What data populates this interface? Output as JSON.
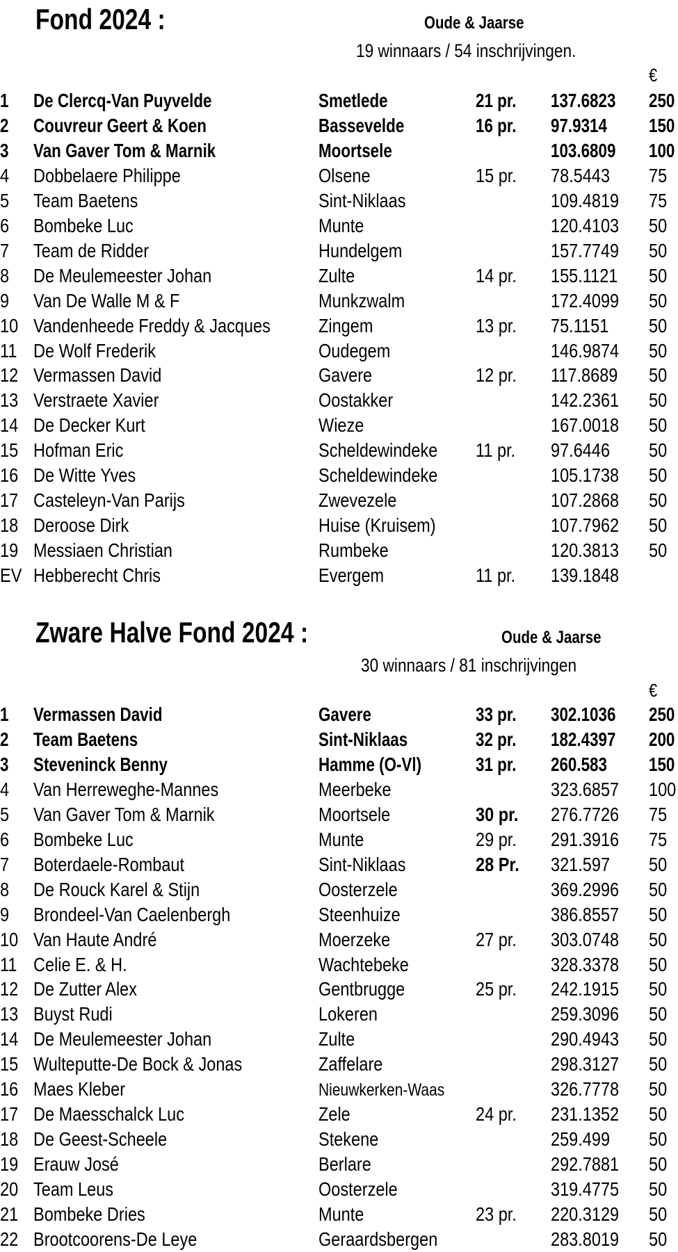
{
  "sections": [
    {
      "title": "Fond 2024 :",
      "category": "Oude & Jaarse",
      "summary": "19 winnaars / 54  inschrijvingen.",
      "currency": "€",
      "rows": [
        {
          "rank": "1",
          "name": "De Clercq-Van Puyvelde",
          "city": "Smetlede",
          "pr": "21 pr.",
          "speed": "137.6823",
          "prize": "250",
          "bold": true
        },
        {
          "rank": "2",
          "name": "Couvreur Geert & Koen",
          "city": "Bassevelde",
          "pr": "16 pr.",
          "speed": "97.9314",
          "prize": "150",
          "bold": true
        },
        {
          "rank": "3",
          "name": "Van Gaver Tom & Marnik",
          "city": "Moortsele",
          "pr": "",
          "speed": "103.6809",
          "prize": "100",
          "bold": true
        },
        {
          "rank": "4",
          "name": "Dobbelaere Philippe",
          "city": "Olsene",
          "pr": "15 pr.",
          "speed": "78.5443",
          "prize": "75"
        },
        {
          "rank": "5",
          "name": "Team Baetens",
          "city": "Sint-Niklaas",
          "pr": "",
          "speed": "109.4819",
          "prize": "75"
        },
        {
          "rank": "6",
          "name": "Bombeke Luc",
          "city": "Munte",
          "pr": "",
          "speed": "120.4103",
          "prize": "50"
        },
        {
          "rank": "7",
          "name": "Team de Ridder",
          "city": "Hundelgem",
          "pr": "",
          "speed": "157.7749",
          "prize": "50"
        },
        {
          "rank": "8",
          "name": "De Meulemeester Johan",
          "city": "Zulte",
          "pr": "14 pr.",
          "speed": "155.1121",
          "prize": "50"
        },
        {
          "rank": "9",
          "name": "Van De Walle M & F",
          "city": "Munkzwalm",
          "pr": "",
          "speed": "172.4099",
          "prize": "50"
        },
        {
          "rank": "10",
          "name": "Vandenheede Freddy & Jacques",
          "city": "Zingem",
          "pr": "13 pr.",
          "speed": "75.1151",
          "prize": "50"
        },
        {
          "rank": "11",
          "name": "De Wolf Frederik",
          "city": "Oudegem",
          "pr": "",
          "speed": "146.9874",
          "prize": "50"
        },
        {
          "rank": "12",
          "name": "Vermassen David",
          "city": "Gavere",
          "pr": "12 pr.",
          "speed": "117.8689",
          "prize": "50"
        },
        {
          "rank": "13",
          "name": "Verstraete Xavier",
          "city": "Oostakker",
          "pr": "",
          "speed": "142.2361",
          "prize": "50"
        },
        {
          "rank": "14",
          "name": "De Decker Kurt",
          "city": "Wieze",
          "pr": "",
          "speed": "167.0018",
          "prize": "50"
        },
        {
          "rank": "15",
          "name": "Hofman Eric",
          "city": "Scheldewindeke",
          "pr": "11 pr.",
          "speed": "97.6446",
          "prize": "50"
        },
        {
          "rank": "16",
          "name": "De Witte Yves",
          "city": "Scheldewindeke",
          "pr": "",
          "speed": "105.1738",
          "prize": "50"
        },
        {
          "rank": "17",
          "name": "Casteleyn-Van Parijs",
          "city": "Zwevezele",
          "pr": "",
          "speed": "107.2868",
          "prize": "50"
        },
        {
          "rank": "18",
          "name": "Deroose Dirk",
          "city": "Huise (Kruisem)",
          "pr": "",
          "speed": "107.7962",
          "prize": "50"
        },
        {
          "rank": "19",
          "name": "Messiaen Christian",
          "city": "Rumbeke",
          "pr": "",
          "speed": "120.3813",
          "prize": "50"
        },
        {
          "rank": "EV",
          "name": "Hebberecht Chris",
          "city": "Evergem",
          "pr": "11 pr.",
          "speed": "139.1848",
          "prize": ""
        }
      ]
    },
    {
      "title": "Zware Halve Fond 2024 :",
      "category": "Oude & Jaarse",
      "summary": "30 winnaars / 81 inschrijvingen",
      "currency": "€",
      "rows": [
        {
          "rank": "1",
          "name": "Vermassen David",
          "city": "Gavere",
          "pr": "33 pr.",
          "speed": "302.1036",
          "prize": "250",
          "bold": true
        },
        {
          "rank": "2",
          "name": "Team Baetens",
          "city": "Sint-Niklaas",
          "pr": "32 pr.",
          "speed": "182.4397",
          "prize": "200",
          "bold": true
        },
        {
          "rank": "3",
          "name": "Steveninck Benny",
          "city": "Hamme (O-Vl)",
          "pr": "31 pr.",
          "speed": "260.583",
          "prize": "150",
          "bold": true
        },
        {
          "rank": "4",
          "name": "Van Herreweghe-Mannes",
          "city": "Meerbeke",
          "pr": "",
          "speed": "323.6857",
          "prize": "100"
        },
        {
          "rank": "5",
          "name": "Van Gaver Tom & Marnik",
          "city": "Moortsele",
          "pr": "30 pr.",
          "speed": "276.7726",
          "prize": "75",
          "pr_bold": true
        },
        {
          "rank": "6",
          "name": "Bombeke Luc",
          "city": "Munte",
          "pr": "29 pr.",
          "speed": "291.3916",
          "prize": "75"
        },
        {
          "rank": "7",
          "name": "Boterdaele-Rombaut",
          "city": "Sint-Niklaas",
          "pr": "28 Pr.",
          "speed": "321.597",
          "prize": "50",
          "pr_bold": true
        },
        {
          "rank": "8",
          "name": "De Rouck Karel & Stijn",
          "city": "Oosterzele",
          "pr": "",
          "speed": "369.2996",
          "prize": "50"
        },
        {
          "rank": "9",
          "name": "Brondeel-Van Caelenbergh",
          "city": "Steenhuize",
          "pr": "",
          "speed": "386.8557",
          "prize": "50"
        },
        {
          "rank": "10",
          "name": "Van Haute André",
          "city": "Moerzeke",
          "pr": "27 pr.",
          "speed": "303.0748",
          "prize": "50"
        },
        {
          "rank": "11",
          "name": "Celie E. & H.",
          "city": "Wachtebeke",
          "pr": "",
          "speed": "328.3378",
          "prize": "50"
        },
        {
          "rank": "12",
          "name": "De Zutter Alex",
          "city": "Gentbrugge",
          "pr": "25 pr.",
          "speed": "242.1915",
          "prize": "50"
        },
        {
          "rank": "13",
          "name": "Buyst Rudi",
          "city": "Lokeren",
          "pr": "",
          "speed": "259.3096",
          "prize": "50"
        },
        {
          "rank": "14",
          "name": "De Meulemeester Johan",
          "city": "Zulte",
          "pr": "",
          "speed": "290.4943",
          "prize": "50"
        },
        {
          "rank": "15",
          "name": "Wulteputte-De Bock & Jonas",
          "city": "Zaffelare",
          "pr": "",
          "speed": "298.3127",
          "prize": "50"
        },
        {
          "rank": "16",
          "name": "Maes Kleber",
          "city": "Nieuwkerken-Waas",
          "pr": "",
          "speed": "326.7778",
          "prize": "50",
          "city_small": true
        },
        {
          "rank": "17",
          "name": "De Maesschalck Luc",
          "city": "Zele",
          "pr": "24 pr.",
          "speed": "231.1352",
          "prize": "50"
        },
        {
          "rank": "18",
          "name": "De Geest-Scheele",
          "city": "Stekene",
          "pr": "",
          "speed": "259.499",
          "prize": "50"
        },
        {
          "rank": "19",
          "name": "Erauw José",
          "city": "Berlare",
          "pr": "",
          "speed": "292.7881",
          "prize": "50"
        },
        {
          "rank": "20",
          "name": "Team Leus",
          "city": "Oosterzele",
          "pr": "",
          "speed": "319.4775",
          "prize": "50"
        },
        {
          "rank": "21",
          "name": "Bombeke Dries",
          "city": "Munte",
          "pr": "23 pr.",
          "speed": "220.3129",
          "prize": "50"
        },
        {
          "rank": "22",
          "name": "Brootcoorens-De Leye",
          "city": "Geraardsbergen",
          "pr": "",
          "speed": "283.8019",
          "prize": "50"
        }
      ]
    }
  ]
}
